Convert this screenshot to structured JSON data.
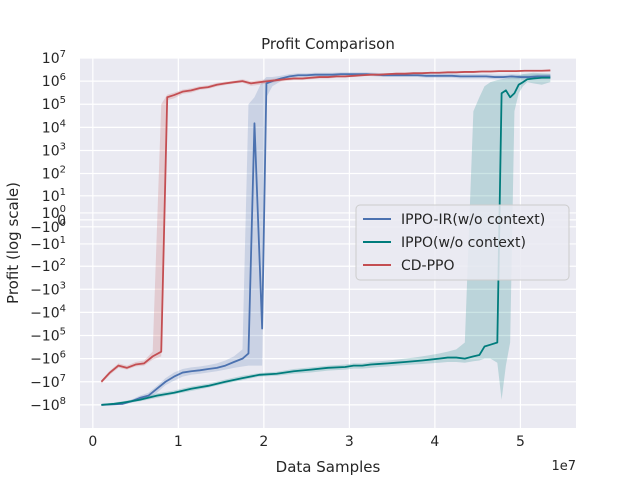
{
  "chart_data": {
    "type": "line",
    "title": "Profit Comparison",
    "xlabel": "Data Samples",
    "ylabel": "Profit (log scale)",
    "x_offset_label": "1e7",
    "x_scale": "linear",
    "y_scale": "symlog",
    "xlim": [
      -1500000,
      56500000
    ],
    "ylim": [
      -1000000000,
      10000000
    ],
    "x_ticks": [
      {
        "value": 0,
        "label": "0"
      },
      {
        "value": 10000000,
        "label": "1"
      },
      {
        "value": 20000000,
        "label": "2"
      },
      {
        "value": 30000000,
        "label": "3"
      },
      {
        "value": 40000000,
        "label": "4"
      },
      {
        "value": 50000000,
        "label": "5"
      }
    ],
    "y_ticks": [
      {
        "value": 10000000,
        "mant": "10",
        "exp": "7"
      },
      {
        "value": 1000000,
        "mant": "10",
        "exp": "6"
      },
      {
        "value": 100000,
        "mant": "10",
        "exp": "5"
      },
      {
        "value": 10000,
        "mant": "10",
        "exp": "4"
      },
      {
        "value": 1000,
        "mant": "10",
        "exp": "3"
      },
      {
        "value": 100,
        "mant": "10",
        "exp": "2"
      },
      {
        "value": 10,
        "mant": "10",
        "exp": "1"
      },
      {
        "value": 1,
        "mant": "10",
        "exp": "0"
      },
      {
        "value": 0,
        "mant": "0",
        "exp": ""
      },
      {
        "value": -1,
        "mant": "−10",
        "exp": "0"
      },
      {
        "value": -10,
        "mant": "−10",
        "exp": "1"
      },
      {
        "value": -100,
        "mant": "−10",
        "exp": "2"
      },
      {
        "value": -1000,
        "mant": "−10",
        "exp": "3"
      },
      {
        "value": -10000,
        "mant": "−10",
        "exp": "4"
      },
      {
        "value": -100000,
        "mant": "−10",
        "exp": "5"
      },
      {
        "value": -1000000,
        "mant": "−10",
        "exp": "6"
      },
      {
        "value": -10000000,
        "mant": "−10",
        "exp": "7"
      },
      {
        "value": -100000000,
        "mant": "−10",
        "exp": "8"
      }
    ],
    "grid": true,
    "legend_position": "center-right",
    "series": [
      {
        "name": "IPPO-IR(w/o context)",
        "color": "#4c72b0",
        "x": [
          1000000,
          3500000,
          4500000,
          5500000,
          6500000,
          7500000,
          8500000,
          9500000,
          10500000,
          11500000,
          12500000,
          13500000,
          14500000,
          15500000,
          16500000,
          17500000,
          18200000,
          18900000,
          19800000,
          20300000,
          21000000,
          22000000,
          23000000,
          24000000,
          25000000,
          26000000,
          27000000,
          28000000,
          29000000,
          30000000,
          31000000,
          32000000,
          33000000,
          34000000,
          35000000,
          36000000,
          37000000,
          38000000,
          39000000,
          40000000,
          41000000,
          42000000,
          43000000,
          44000000,
          45000000,
          46000000,
          47000000,
          48000000,
          49000000,
          50000000,
          51000000,
          52000000,
          53500000
        ],
        "y": [
          -100000000,
          -90000000,
          -70000000,
          -50000000,
          -40000000,
          -20000000,
          -10000000,
          -6000000,
          -4000000,
          -3500000,
          -3200000,
          -2800000,
          -2500000,
          -2000000,
          -1400000,
          -1000000,
          -600000,
          15000,
          -50000,
          800000,
          1000000,
          1300000,
          1600000,
          1800000,
          1800000,
          1900000,
          1900000,
          1900000,
          2000000,
          2000000,
          2000000,
          2000000,
          1900000,
          1800000,
          1800000,
          1800000,
          1800000,
          1800000,
          1700000,
          1700000,
          1700000,
          1700000,
          1600000,
          1600000,
          1600000,
          1600000,
          1500000,
          1500000,
          1600000,
          1500000,
          1500000,
          1600000,
          1600000
        ],
        "band_low": [
          -110000000,
          -100000000,
          -80000000,
          -60000000,
          -50000000,
          -30000000,
          -14000000,
          -9000000,
          -6000000,
          -5000000,
          -4500000,
          -4000000,
          -3500000,
          -3000000,
          -2500000,
          -2200000,
          -2000000,
          -2000000,
          -2000000,
          200000,
          600000,
          1000000,
          1300000,
          1500000,
          1500000,
          1600000,
          1600000,
          1600000,
          1700000,
          1700000,
          1700000,
          1700000,
          1600000,
          1500000,
          1500000,
          1500000,
          1500000,
          1500000,
          1400000,
          1400000,
          1400000,
          1400000,
          1300000,
          1300000,
          1300000,
          1300000,
          1200000,
          1200000,
          1300000,
          1200000,
          1200000,
          1300000,
          1300000
        ],
        "band_high": [
          -90000000,
          -80000000,
          -60000000,
          -40000000,
          -30000000,
          -15000000,
          -7000000,
          -4000000,
          -2800000,
          -2400000,
          -2200000,
          -1900000,
          -1600000,
          -1200000,
          -800000,
          -400000,
          100000,
          200000,
          1000000,
          1500000,
          1500000,
          1700000,
          2000000,
          2200000,
          2200000,
          2300000,
          2300000,
          2300000,
          2400000,
          2400000,
          2400000,
          2400000,
          2300000,
          2200000,
          2200000,
          2200000,
          2200000,
          2200000,
          2100000,
          2100000,
          2100000,
          2100000,
          2000000,
          2000000,
          2000000,
          2000000,
          1900000,
          1900000,
          2000000,
          1900000,
          1900000,
          2000000,
          2000000
        ]
      },
      {
        "name": "IPPO(w/o context)",
        "color": "#007c7c",
        "x": [
          1000000,
          2500000,
          3500000,
          4500000,
          5500000,
          7500000,
          9500000,
          11500000,
          13500000,
          15500000,
          17500000,
          19500000,
          21500000,
          23500000,
          25500000,
          27500000,
          29500000,
          30500000,
          31500000,
          32500000,
          33500000,
          34500000,
          35500000,
          36500000,
          37500000,
          38500000,
          39500000,
          40500000,
          41500000,
          42500000,
          43500000,
          44500000,
          45200000,
          45800000,
          46500000,
          47300000,
          47800000,
          48300000,
          48800000,
          49300000,
          49800000,
          50300000,
          50800000,
          51500000,
          52500000,
          53500000
        ],
        "y": [
          -100000000,
          -90000000,
          -80000000,
          -70000000,
          -60000000,
          -40000000,
          -30000000,
          -20000000,
          -15000000,
          -10000000,
          -7000000,
          -5000000,
          -4500000,
          -3500000,
          -3000000,
          -2500000,
          -2300000,
          -2000000,
          -2000000,
          -1800000,
          -1700000,
          -1600000,
          -1500000,
          -1400000,
          -1300000,
          -1200000,
          -1100000,
          -1000000,
          -900000,
          -900000,
          -1000000,
          -800000,
          -700000,
          -300000,
          -250000,
          -200000,
          300000,
          400000,
          200000,
          300000,
          700000,
          900000,
          1200000,
          1300000,
          1400000,
          1400000
        ],
        "band_low": [
          -110000000,
          -100000000,
          -90000000,
          -80000000,
          -70000000,
          -50000000,
          -35000000,
          -25000000,
          -18000000,
          -12000000,
          -8500000,
          -6000000,
          -5500000,
          -4500000,
          -4000000,
          -3300000,
          -3000000,
          -2700000,
          -2700000,
          -2500000,
          -2300000,
          -2200000,
          -2000000,
          -1900000,
          -1800000,
          -1700000,
          -1600000,
          -1500000,
          -1400000,
          -1400000,
          -1500000,
          -1300000,
          -1200000,
          -1000000,
          -1000000,
          -1500000,
          -60000000,
          -2000000,
          -200000,
          50000,
          300000,
          600000,
          900000,
          800000,
          700000,
          900000
        ],
        "band_high": [
          -90000000,
          -80000000,
          -70000000,
          -60000000,
          -50000000,
          -32000000,
          -24000000,
          -16000000,
          -12000000,
          -8000000,
          -5500000,
          -4200000,
          -3700000,
          -2800000,
          -2400000,
          -2000000,
          -1800000,
          -1600000,
          -1600000,
          -1400000,
          -1300000,
          -1200000,
          -1100000,
          -1000000,
          -900000,
          -800000,
          -700000,
          -600000,
          -500000,
          -400000,
          -200000,
          50000,
          200000,
          600000,
          900000,
          1100000,
          1200000,
          1300000,
          1400000,
          1600000,
          1800000,
          2000000,
          2100000,
          2300000,
          2200000,
          2100000
        ]
      },
      {
        "name": "CD-PPO",
        "color": "#c44e52",
        "x": [
          1000000,
          2000000,
          3000000,
          4000000,
          5000000,
          6000000,
          7000000,
          8000000,
          8700000,
          9500000,
          10500000,
          11500000,
          12500000,
          13500000,
          14500000,
          15500000,
          16500000,
          17500000,
          18500000,
          19500000,
          20500000,
          21500000,
          22500000,
          23500000,
          24500000,
          25500000,
          26500000,
          27500000,
          28500000,
          29500000,
          30500000,
          31500000,
          32500000,
          33500000,
          34500000,
          35500000,
          36500000,
          37500000,
          38500000,
          39500000,
          40500000,
          41500000,
          42500000,
          43500000,
          44500000,
          45500000,
          46500000,
          47500000,
          48500000,
          49500000,
          50500000,
          51500000,
          52500000,
          53500000
        ],
        "y": [
          -10000000,
          -4000000,
          -2000000,
          -2500000,
          -1800000,
          -1600000,
          -800000,
          -500000,
          200000,
          250000,
          350000,
          400000,
          500000,
          550000,
          700000,
          800000,
          900000,
          1000000,
          800000,
          900000,
          1000000,
          1100000,
          1200000,
          1300000,
          1300000,
          1400000,
          1500000,
          1500000,
          1600000,
          1600000,
          1700000,
          1800000,
          1900000,
          1900000,
          2000000,
          2100000,
          2100000,
          2200000,
          2200000,
          2300000,
          2300000,
          2400000,
          2400000,
          2500000,
          2500000,
          2600000,
          2600000,
          2700000,
          2700000,
          2700000,
          2800000,
          2800000,
          2800000,
          2900000
        ],
        "band_low": [
          -12000000,
          -5000000,
          -2500000,
          -3000000,
          -2200000,
          -2000000,
          -1100000,
          -800000,
          150000,
          180000,
          280000,
          320000,
          420000,
          460000,
          580000,
          680000,
          780000,
          860000,
          620000,
          700000,
          820000,
          920000,
          1000000,
          1100000,
          1100000,
          1200000,
          1300000,
          1300000,
          1400000,
          1400000,
          1500000,
          1600000,
          1700000,
          1700000,
          1800000,
          1900000,
          1900000,
          2000000,
          2000000,
          2100000,
          2100000,
          2200000,
          2200000,
          2300000,
          2300000,
          2400000,
          2400000,
          2500000,
          2500000,
          2500000,
          2600000,
          2600000,
          2600000,
          2700000
        ],
        "band_high": [
          -8500000,
          -3300000,
          -1600000,
          -2000000,
          -1400000,
          -1200000,
          -500000,
          100000,
          260000,
          320000,
          430000,
          490000,
          600000,
          660000,
          840000,
          950000,
          1050000,
          1200000,
          1000000,
          1100000,
          1200000,
          1300000,
          1400000,
          1500000,
          1500000,
          1600000,
          1700000,
          1700000,
          1800000,
          1800000,
          1900000,
          2000000,
          2100000,
          2100000,
          2200000,
          2300000,
          2300000,
          2400000,
          2400000,
          2500000,
          2500000,
          2600000,
          2600000,
          2700000,
          2700000,
          2800000,
          2800000,
          2900000,
          2900000,
          2900000,
          3000000,
          3000000,
          3000000,
          3100000
        ]
      }
    ]
  }
}
